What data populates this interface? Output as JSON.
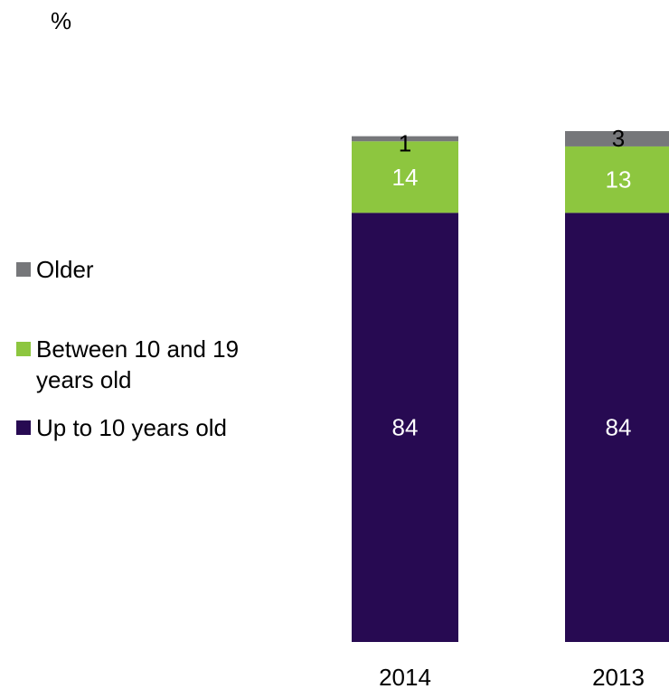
{
  "chart_data": {
    "type": "bar",
    "stacked": true,
    "title": "",
    "unit_label": "%",
    "categories": [
      "2014",
      "2013"
    ],
    "series": [
      {
        "name": "Up to 10 years old",
        "values": [
          84,
          84
        ],
        "color": "#270a52",
        "label_color": "#ffffff"
      },
      {
        "name": "Between 10 and 19 years old",
        "values": [
          14,
          13
        ],
        "color": "#8dc63f",
        "label_color": "#ffffff"
      },
      {
        "name": "Older",
        "values": [
          1,
          3
        ],
        "color": "#76777a",
        "label_color": "#000000"
      }
    ],
    "legend": {
      "position": "left",
      "items": [
        {
          "lines": [
            "Older"
          ],
          "color": "#76777a"
        },
        {
          "lines": [
            "Between 10 and 19",
            "years old"
          ],
          "color": "#8dc63f"
        },
        {
          "lines": [
            "Up to 10 years old"
          ],
          "color": "#270a52"
        }
      ]
    },
    "ylim": [
      0,
      100
    ],
    "grid": false,
    "axes_visible": false
  }
}
